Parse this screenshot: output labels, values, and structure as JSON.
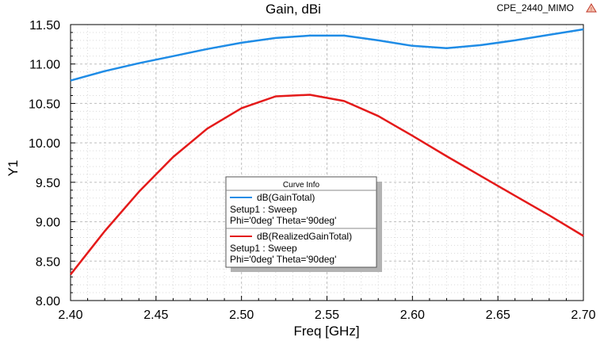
{
  "chart_data": {
    "type": "line",
    "title": "Gain, dBi",
    "project_label": "CPE_2440_MIMO",
    "xlabel": "Freq [GHz]",
    "ylabel": "Y1",
    "xlim": [
      2.4,
      2.7
    ],
    "ylim": [
      8.0,
      11.5
    ],
    "x_ticks": [
      "2.40",
      "2.45",
      "2.50",
      "2.55",
      "2.60",
      "2.65",
      "2.70"
    ],
    "y_ticks": [
      "8.00",
      "8.50",
      "9.00",
      "9.50",
      "10.00",
      "10.50",
      "11.00",
      "11.50"
    ],
    "grid": true,
    "legend_position": "center",
    "legend_title": "Curve Info",
    "series": [
      {
        "name": "dB(GainTotal)",
        "detail_lines": [
          "Setup1 : Sweep",
          "Phi='0deg' Theta='90deg'"
        ],
        "color": "#1f8ce6",
        "x": [
          2.4,
          2.42,
          2.44,
          2.46,
          2.48,
          2.5,
          2.52,
          2.54,
          2.56,
          2.58,
          2.6,
          2.62,
          2.64,
          2.66,
          2.68,
          2.7
        ],
        "values": [
          10.79,
          10.91,
          11.01,
          11.1,
          11.19,
          11.27,
          11.33,
          11.36,
          11.36,
          11.3,
          11.23,
          11.2,
          11.24,
          11.3,
          11.37,
          11.44
        ]
      },
      {
        "name": "dB(RealizedGainTotal)",
        "detail_lines": [
          "Setup1 : Sweep",
          "Phi='0deg' Theta='90deg'"
        ],
        "color": "#e41a1a",
        "x": [
          2.4,
          2.42,
          2.44,
          2.46,
          2.48,
          2.5,
          2.52,
          2.54,
          2.56,
          2.58,
          2.6,
          2.62,
          2.64,
          2.66,
          2.68,
          2.7
        ],
        "values": [
          8.33,
          8.88,
          9.38,
          9.82,
          10.18,
          10.44,
          10.59,
          10.61,
          10.53,
          10.34,
          10.09,
          9.83,
          9.58,
          9.33,
          9.08,
          8.82
        ]
      }
    ]
  }
}
